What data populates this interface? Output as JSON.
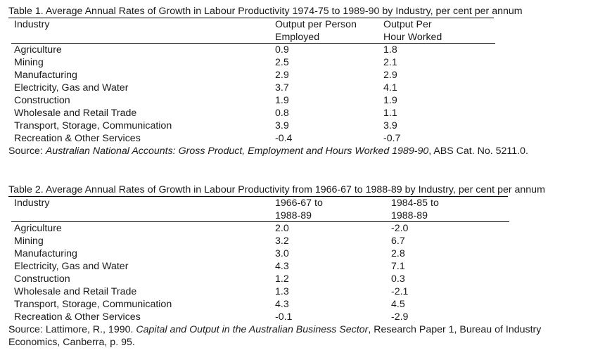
{
  "table1": {
    "caption": "Table 1.  Average Annual Rates of Growth in Labour Productivity 1974-75 to 1989-90 by Industry, per cent per annum",
    "columns": {
      "industry": "Industry",
      "col1": [
        "Output per Person",
        "Employed"
      ],
      "col2": [
        "Output Per",
        "Hour Worked"
      ]
    },
    "rows": [
      {
        "industry": "Agriculture",
        "v1": "0.9",
        "v2": "1.8"
      },
      {
        "industry": "Mining",
        "v1": "2.5",
        "v2": "2.1"
      },
      {
        "industry": "Manufacturing",
        "v1": "2.9",
        "v2": "2.9"
      },
      {
        "industry": "Electricity, Gas and Water",
        "v1": "3.7",
        "v2": "4.1"
      },
      {
        "industry": "Construction",
        "v1": "1.9",
        "v2": "1.9"
      },
      {
        "industry": "Wholesale and Retail Trade",
        "v1": "0.8",
        "v2": "1.1"
      },
      {
        "industry": "Transport, Storage, Communication",
        "v1": "3.9",
        "v2": "3.9"
      },
      {
        "industry": "Recreation & Other Services",
        "v1": "-0.4",
        "v2": "-0.7"
      }
    ],
    "source": {
      "prefix": "Source:  ",
      "title": "Australian National Accounts: Gross Product, Employment and Hours Worked 1989-90",
      "suffix": ", ABS Cat. No. 5211.0."
    }
  },
  "table2": {
    "caption": "Table 2.  Average Annual Rates of Growth in Labour Productivity from 1966-67 to 1988-89 by Industry, per cent per annum",
    "columns": {
      "industry": "Industry",
      "col1": [
        "1966-67 to",
        "1988-89"
      ],
      "col2": [
        "1984-85 to",
        "1988-89"
      ]
    },
    "rows": [
      {
        "industry": "Agriculture",
        "v1": "2.0",
        "v2": "-2.0"
      },
      {
        "industry": "Mining",
        "v1": "3.2",
        "v2": "6.7"
      },
      {
        "industry": "Manufacturing",
        "v1": "3.0",
        "v2": "2.8"
      },
      {
        "industry": "Electricity, Gas and Water",
        "v1": "4.3",
        "v2": "7.1"
      },
      {
        "industry": "Construction",
        "v1": "1.2",
        "v2": "0.3"
      },
      {
        "industry": "Wholesale and Retail Trade",
        "v1": "1.3",
        "v2": "-2.1"
      },
      {
        "industry": "Transport, Storage, Communication",
        "v1": "4.3",
        "v2": "4.5"
      },
      {
        "industry": "Recreation & Other Services",
        "v1": "-0.1",
        "v2": "-2.9"
      }
    ],
    "source": {
      "prefix": "Source:  Lattimore, R., 1990.  ",
      "title": "Capital and Output in the Australian Business Sector",
      "suffix": ", Research Paper 1, Bureau of Industry",
      "line2": "Economics, Canberra, p. 95."
    }
  }
}
